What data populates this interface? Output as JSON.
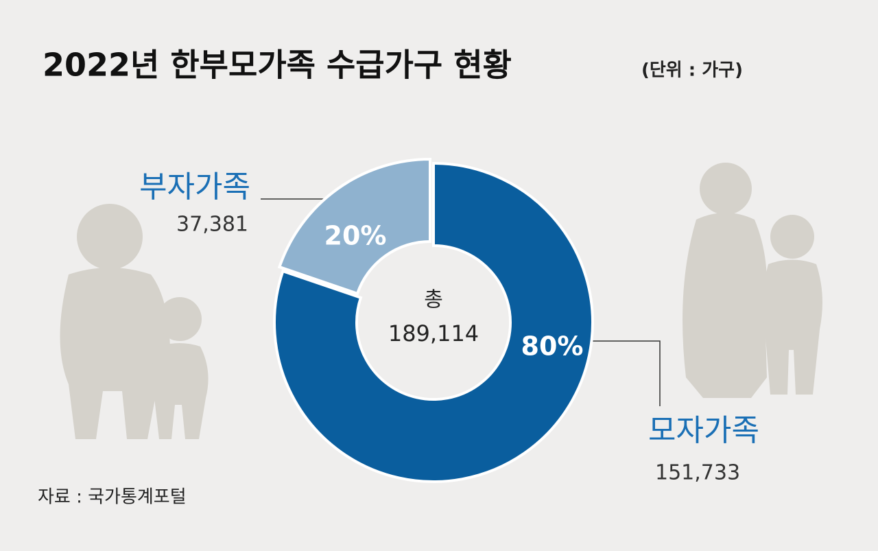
{
  "chart_data": {
    "type": "donut",
    "title": "2022년 한부모가족 수급가구 현황",
    "unit": "(단위 : 가구)",
    "categories": [
      "부자가족",
      "모자가족"
    ],
    "values": [
      37381,
      151733
    ],
    "value_labels": [
      "37,381",
      "151,733"
    ],
    "percent_labels": [
      "20%",
      "80%"
    ],
    "colors": [
      "#8fb2cf",
      "#0a5e9e"
    ],
    "center_label": "총",
    "total": "189,114",
    "source": "자료 : 국가통계포털"
  }
}
